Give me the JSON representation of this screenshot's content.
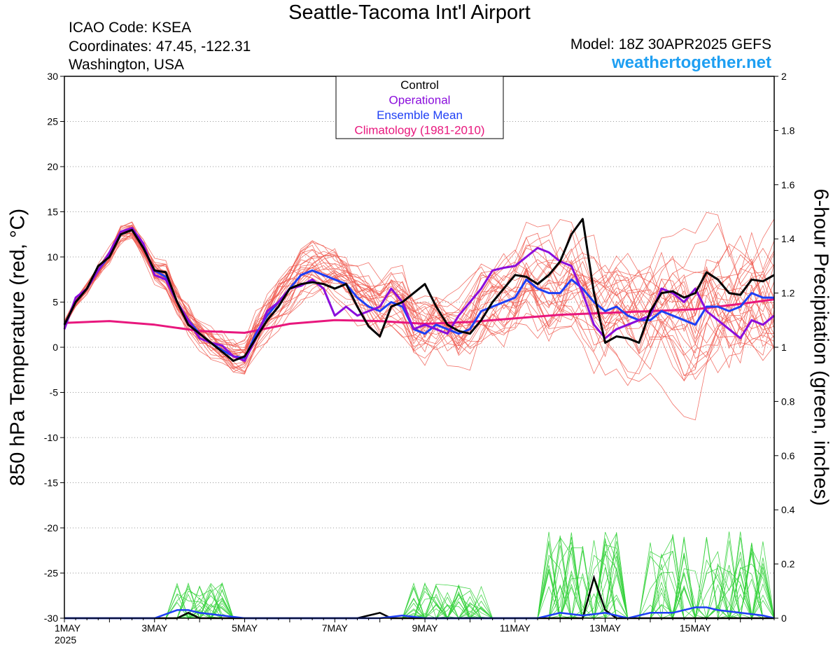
{
  "header": {
    "title": "Seattle-Tacoma Int'l Airport",
    "icao": "ICAO Code: KSEA",
    "coordinates": "Coordinates: 47.45, -122.31",
    "region": "Washington, USA",
    "model": "Model: 18Z 30APR2025 GEFS",
    "site": "weathertogether.net"
  },
  "colors": {
    "members": "#f05a50",
    "precip_members": "#33d23a",
    "control": "#000000",
    "operational": "#8a0ddc",
    "mean": "#1e3ff5",
    "climatology": "#e8177d"
  },
  "chart_data": {
    "type": "line",
    "ylabel": "850 hPa Temperature (red, °C)",
    "y2label": "6-hour Precipitation (green, inches)",
    "ylim": [
      -30,
      30
    ],
    "y2lim": [
      0,
      2
    ],
    "yticks": [
      30,
      25,
      20,
      15,
      10,
      5,
      0,
      -5,
      -10,
      -15,
      -20,
      -25,
      -30
    ],
    "y2ticks": [
      "2",
      "1.8",
      "1.6",
      "1.4",
      "1.2",
      "1",
      "0.8",
      "0.6",
      "0.4",
      "0.2",
      "0"
    ],
    "grid": "horizontal dotted",
    "x_range_days": [
      0,
      15.75
    ],
    "x_ticks": [
      {
        "day": 0,
        "label": "1MAY",
        "sub": "2025"
      },
      {
        "day": 2,
        "label": "3MAY",
        "sub": ""
      },
      {
        "day": 4,
        "label": "5MAY",
        "sub": ""
      },
      {
        "day": 6,
        "label": "7MAY",
        "sub": ""
      },
      {
        "day": 8,
        "label": "9MAY",
        "sub": ""
      },
      {
        "day": 10,
        "label": "11MAY",
        "sub": ""
      },
      {
        "day": 12,
        "label": "13MAY",
        "sub": ""
      },
      {
        "day": 14,
        "label": "15MAY",
        "sub": ""
      }
    ],
    "legend": {
      "placement": "top-center",
      "entries": [
        {
          "label": "Control",
          "color": "#000000"
        },
        {
          "label": "Operational",
          "color": "#8a0ddc"
        },
        {
          "label": "Ensemble Mean",
          "color": "#1e3ff5"
        },
        {
          "label": "Climatology (1981-2010)",
          "color": "#e8177d"
        }
      ]
    },
    "temperature_series": [
      {
        "name": "Control",
        "values": [
          [
            0,
            2.5
          ],
          [
            0.25,
            5
          ],
          [
            0.5,
            6.5
          ],
          [
            0.75,
            9
          ],
          [
            1,
            10
          ],
          [
            1.25,
            12.5
          ],
          [
            1.5,
            13
          ],
          [
            1.75,
            11
          ],
          [
            2,
            8.5
          ],
          [
            2.25,
            8.3
          ],
          [
            2.5,
            5
          ],
          [
            2.75,
            2.5
          ],
          [
            3,
            1.5
          ],
          [
            3.25,
            0.5
          ],
          [
            3.5,
            -0.5
          ],
          [
            3.75,
            -1.5
          ],
          [
            4,
            -1
          ],
          [
            4.25,
            1
          ],
          [
            4.5,
            3
          ],
          [
            4.75,
            4.5
          ],
          [
            5,
            6.5
          ],
          [
            5.25,
            7
          ],
          [
            5.5,
            7.2
          ],
          [
            5.75,
            7
          ],
          [
            6,
            6.5
          ],
          [
            6.25,
            7
          ],
          [
            6.5,
            4.5
          ],
          [
            6.75,
            2.3
          ],
          [
            7,
            1.2
          ],
          [
            7.25,
            4.5
          ],
          [
            7.5,
            5
          ],
          [
            7.75,
            6
          ],
          [
            8,
            7
          ],
          [
            8.25,
            4.5
          ],
          [
            8.5,
            2.5
          ],
          [
            8.75,
            1.8
          ],
          [
            9,
            1.5
          ],
          [
            9.25,
            3
          ],
          [
            9.5,
            5
          ],
          [
            9.75,
            6.5
          ],
          [
            10,
            8
          ],
          [
            10.25,
            7.8
          ],
          [
            10.5,
            7
          ],
          [
            10.75,
            8
          ],
          [
            11,
            9.5
          ],
          [
            11.25,
            12.5
          ],
          [
            11.5,
            14.2
          ],
          [
            11.75,
            6
          ],
          [
            12,
            0.5
          ],
          [
            12.25,
            1.2
          ],
          [
            12.5,
            1
          ],
          [
            12.75,
            0.5
          ],
          [
            13,
            4
          ],
          [
            13.25,
            6
          ],
          [
            13.5,
            6.2
          ],
          [
            13.75,
            5.5
          ],
          [
            14,
            6
          ],
          [
            14.25,
            8.3
          ],
          [
            14.5,
            7.5
          ],
          [
            14.75,
            6
          ],
          [
            15,
            5.8
          ],
          [
            15.25,
            7.5
          ],
          [
            15.5,
            7.3
          ],
          [
            15.75,
            8
          ]
        ]
      },
      {
        "name": "Operational",
        "values": [
          [
            0,
            2
          ],
          [
            0.25,
            5.5
          ],
          [
            0.5,
            6.5
          ],
          [
            0.75,
            8.5
          ],
          [
            1,
            10.5
          ],
          [
            1.25,
            12.8
          ],
          [
            1.5,
            13.2
          ],
          [
            1.75,
            11.5
          ],
          [
            2,
            8
          ],
          [
            2.25,
            7.5
          ],
          [
            2.5,
            5
          ],
          [
            2.75,
            3
          ],
          [
            3,
            1
          ],
          [
            3.25,
            0.5
          ],
          [
            3.5,
            0.2
          ],
          [
            3.75,
            -1
          ],
          [
            4,
            -1.5
          ],
          [
            4.25,
            1
          ],
          [
            4.5,
            4
          ],
          [
            4.75,
            5
          ],
          [
            5,
            6.5
          ],
          [
            5.25,
            6.8
          ],
          [
            5.5,
            7.5
          ],
          [
            5.75,
            6.5
          ],
          [
            6,
            3.5
          ],
          [
            6.25,
            4.5
          ],
          [
            6.5,
            3.5
          ],
          [
            6.75,
            4
          ],
          [
            7,
            4.5
          ],
          [
            7.25,
            6.5
          ],
          [
            7.5,
            5
          ],
          [
            7.75,
            2
          ],
          [
            8,
            2.5
          ],
          [
            8.25,
            2
          ],
          [
            8.5,
            1.5
          ],
          [
            8.75,
            3.5
          ],
          [
            9,
            5
          ],
          [
            9.25,
            6.5
          ],
          [
            9.5,
            8.5
          ],
          [
            9.75,
            8.8
          ],
          [
            10,
            9
          ],
          [
            10.25,
            10
          ],
          [
            10.5,
            11
          ],
          [
            10.75,
            10.5
          ],
          [
            11,
            9.5
          ],
          [
            11.25,
            9
          ],
          [
            11.5,
            6
          ],
          [
            11.75,
            2.5
          ],
          [
            12,
            1
          ],
          [
            12.25,
            2
          ],
          [
            12.5,
            2.5
          ],
          [
            12.75,
            3
          ],
          [
            13,
            3.5
          ],
          [
            13.25,
            6.5
          ],
          [
            13.5,
            6
          ],
          [
            13.75,
            5
          ],
          [
            14,
            6.5
          ],
          [
            14.25,
            4
          ],
          [
            14.5,
            3
          ],
          [
            14.75,
            2
          ],
          [
            15,
            1
          ],
          [
            15.25,
            3
          ],
          [
            15.5,
            2.5
          ],
          [
            15.75,
            3.5
          ]
        ]
      },
      {
        "name": "Ensemble Mean",
        "values": [
          [
            0,
            2.5
          ],
          [
            0.25,
            5
          ],
          [
            0.5,
            6.5
          ],
          [
            0.75,
            8.5
          ],
          [
            1,
            10.2
          ],
          [
            1.25,
            12.5
          ],
          [
            1.5,
            13
          ],
          [
            1.75,
            11
          ],
          [
            2,
            8.5
          ],
          [
            2.25,
            7.8
          ],
          [
            2.5,
            5
          ],
          [
            2.75,
            3
          ],
          [
            3,
            1.5
          ],
          [
            3.25,
            0.5
          ],
          [
            3.5,
            -0.3
          ],
          [
            3.75,
            -1
          ],
          [
            4,
            -1.2
          ],
          [
            4.25,
            1.5
          ],
          [
            4.5,
            3.5
          ],
          [
            4.75,
            5
          ],
          [
            5,
            6.5
          ],
          [
            5.25,
            8
          ],
          [
            5.5,
            8.5
          ],
          [
            5.75,
            8
          ],
          [
            6,
            7.5
          ],
          [
            6.25,
            7
          ],
          [
            6.5,
            5.5
          ],
          [
            6.75,
            4.5
          ],
          [
            7,
            4
          ],
          [
            7.25,
            5
          ],
          [
            7.5,
            4.5
          ],
          [
            7.75,
            2
          ],
          [
            8,
            1.5
          ],
          [
            8.25,
            2.5
          ],
          [
            8.5,
            2
          ],
          [
            8.75,
            1.5
          ],
          [
            9,
            2
          ],
          [
            9.25,
            4
          ],
          [
            9.5,
            4.5
          ],
          [
            9.75,
            5
          ],
          [
            10,
            5.5
          ],
          [
            10.25,
            7.5
          ],
          [
            10.5,
            6.5
          ],
          [
            10.75,
            6
          ],
          [
            11,
            6
          ],
          [
            11.25,
            7.5
          ],
          [
            11.5,
            6.5
          ],
          [
            11.75,
            5
          ],
          [
            12,
            4
          ],
          [
            12.25,
            4.5
          ],
          [
            12.5,
            3.5
          ],
          [
            12.75,
            3
          ],
          [
            13,
            3
          ],
          [
            13.25,
            4
          ],
          [
            13.5,
            3.5
          ],
          [
            13.75,
            3
          ],
          [
            14,
            2.5
          ],
          [
            14.25,
            4.5
          ],
          [
            14.5,
            4.5
          ],
          [
            14.75,
            4
          ],
          [
            15,
            4.5
          ],
          [
            15.25,
            6
          ],
          [
            15.5,
            5.5
          ],
          [
            15.75,
            5.5
          ]
        ]
      },
      {
        "name": "Climatology (1981-2010)",
        "values": [
          [
            0,
            2.7
          ],
          [
            1,
            2.9
          ],
          [
            2,
            2.5
          ],
          [
            3,
            1.8
          ],
          [
            4,
            1.6
          ],
          [
            5,
            2.6
          ],
          [
            6,
            3
          ],
          [
            7,
            2.9
          ],
          [
            8,
            2.6
          ],
          [
            9,
            2.8
          ],
          [
            10,
            3.2
          ],
          [
            11,
            3.6
          ],
          [
            12,
            3.8
          ],
          [
            13,
            4
          ],
          [
            14,
            4.2
          ],
          [
            15,
            4.8
          ],
          [
            15.75,
            5.3
          ]
        ]
      }
    ],
    "precip_series": [
      {
        "name": "Control",
        "values": [
          [
            0,
            0
          ],
          [
            2,
            0
          ],
          [
            2.5,
            0
          ],
          [
            2.75,
            0.02
          ],
          [
            3,
            0
          ],
          [
            4,
            0
          ],
          [
            5,
            0
          ],
          [
            6,
            0
          ],
          [
            6.5,
            0
          ],
          [
            6.75,
            0.01
          ],
          [
            7,
            0.02
          ],
          [
            7.25,
            0
          ],
          [
            8,
            0
          ],
          [
            9,
            0
          ],
          [
            10,
            0
          ],
          [
            11,
            0
          ],
          [
            11.5,
            0
          ],
          [
            11.75,
            0.15
          ],
          [
            12,
            0.03
          ],
          [
            12.25,
            0
          ],
          [
            13,
            0
          ],
          [
            14,
            0
          ],
          [
            15,
            0
          ],
          [
            15.75,
            0
          ]
        ]
      },
      {
        "name": "Ensemble Mean",
        "values": [
          [
            0,
            0
          ],
          [
            2,
            0
          ],
          [
            2.5,
            0.03
          ],
          [
            2.75,
            0.03
          ],
          [
            3,
            0.02
          ],
          [
            3.5,
            0.01
          ],
          [
            4,
            0
          ],
          [
            5,
            0
          ],
          [
            6,
            0
          ],
          [
            7,
            0
          ],
          [
            7.5,
            0.01
          ],
          [
            8,
            0
          ],
          [
            9,
            0
          ],
          [
            10,
            0
          ],
          [
            10.5,
            0
          ],
          [
            11,
            0.02
          ],
          [
            11.5,
            0.01
          ],
          [
            12,
            0.02
          ],
          [
            12.25,
            0.01
          ],
          [
            12.5,
            0
          ],
          [
            13,
            0.02
          ],
          [
            13.5,
            0.02
          ],
          [
            14,
            0.04
          ],
          [
            14.25,
            0.04
          ],
          [
            14.5,
            0.03
          ],
          [
            15,
            0.02
          ],
          [
            15.5,
            0.01
          ],
          [
            15.75,
            0
          ]
        ]
      }
    ]
  }
}
